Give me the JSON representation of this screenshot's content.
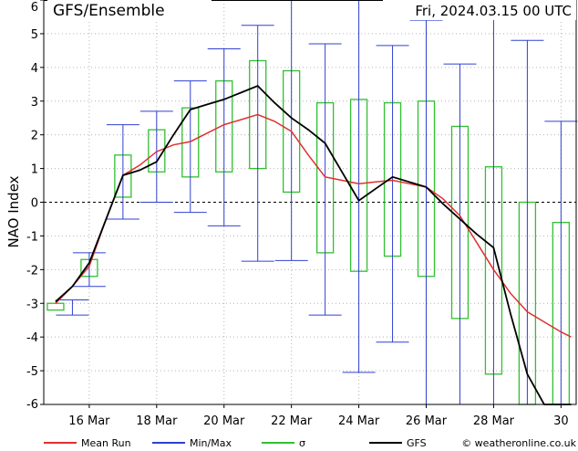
{
  "chart_data": {
    "type": "line",
    "title": "GFS/Ensemble",
    "subtitle": "Fri, 2024.03.15   00 UTC",
    "xlabel": "",
    "ylabel": "NAO Index",
    "ylim": [
      -6,
      6
    ],
    "yticks": [
      -6,
      -5,
      -4,
      -3,
      -2,
      -1,
      0,
      1,
      2,
      3,
      4,
      5,
      6
    ],
    "xticks": [
      {
        "day": 16,
        "label": "16 Mar"
      },
      {
        "day": 18,
        "label": "18 Mar"
      },
      {
        "day": 20,
        "label": "20 Mar"
      },
      {
        "day": 22,
        "label": "22 Mar"
      },
      {
        "day": 24,
        "label": "24 Mar"
      },
      {
        "day": 26,
        "label": "26 Mar"
      },
      {
        "day": 28,
        "label": "28 Mar"
      },
      {
        "day": 30,
        "label": "30"
      }
    ],
    "x_days": [
      15,
      15.5,
      16,
      16.5,
      17,
      17.5,
      18,
      18.5,
      19,
      19.5,
      20,
      20.5,
      21,
      21.5,
      22,
      22.5,
      23,
      23.5,
      24,
      24.5,
      25,
      25.5,
      26,
      26.5,
      27,
      27.5,
      28,
      28.5,
      29,
      29.5,
      30,
      30.3
    ],
    "grid": true,
    "zero_line": true,
    "legend_position": "bottom",
    "colors": {
      "mean": "#e03030",
      "minmax": "#3040d0",
      "sigma": "#30c030",
      "gfs": "#000000",
      "grid": "#b4b4b4"
    },
    "series": [
      {
        "name": "Mean Run",
        "color": "#e03030",
        "values": [
          -3.0,
          -2.5,
          -1.9,
          -0.5,
          0.8,
          1.1,
          1.5,
          1.7,
          1.8,
          2.05,
          2.3,
          2.45,
          2.6,
          2.4,
          2.1,
          1.4,
          0.75,
          0.65,
          0.55,
          0.6,
          0.65,
          0.55,
          0.45,
          0.1,
          -0.4,
          -1.2,
          -2.0,
          -2.7,
          -3.25,
          -3.55,
          -3.85,
          -4.0
        ]
      },
      {
        "name": "GFS",
        "color": "#000000",
        "values": [
          -2.95,
          -2.5,
          -1.8,
          -0.5,
          0.8,
          0.95,
          1.2,
          2.0,
          2.75,
          2.9,
          3.05,
          3.25,
          3.45,
          2.95,
          2.5,
          2.15,
          1.75,
          0.9,
          0.05,
          0.4,
          0.75,
          0.6,
          0.45,
          -0.05,
          -0.5,
          -0.95,
          -1.35,
          -3.3,
          -5.1,
          -6.0,
          -6.0,
          -6.0
        ]
      }
    ],
    "minmax": {
      "name": "Min/Max",
      "bars": [
        {
          "x": 15.5,
          "min": -3.35,
          "max": -2.9
        },
        {
          "x": 16,
          "min": -2.5,
          "max": -1.5
        },
        {
          "x": 17,
          "min": -0.5,
          "max": 2.3
        },
        {
          "x": 18,
          "min": 0.0,
          "max": 2.7
        },
        {
          "x": 19,
          "min": -0.3,
          "max": 3.6
        },
        {
          "x": 20,
          "min": -0.7,
          "max": 4.55
        },
        {
          "x": 21,
          "min": -1.75,
          "max": 5.25
        },
        {
          "x": 22,
          "min": -1.73,
          "max": 6.0
        },
        {
          "x": 23,
          "min": -3.35,
          "max": 4.7
        },
        {
          "x": 24,
          "min": -5.05,
          "max": 6.0
        },
        {
          "x": 25,
          "min": -4.15,
          "max": 4.65
        },
        {
          "x": 26,
          "min": -6.0,
          "max": 5.4
        },
        {
          "x": 27,
          "min": -6.0,
          "max": 4.1
        },
        {
          "x": 28,
          "min": -6.0,
          "max": 5.9
        },
        {
          "x": 29,
          "min": -6.0,
          "max": 4.8
        },
        {
          "x": 30,
          "min": -6.0,
          "max": 2.4
        }
      ]
    },
    "sigma": {
      "name": "σ",
      "boxes": [
        {
          "x": 15,
          "low": -3.2,
          "high": -3.0
        },
        {
          "x": 16,
          "low": -2.2,
          "high": -1.7
        },
        {
          "x": 17,
          "low": 0.15,
          "high": 1.4
        },
        {
          "x": 18,
          "low": 0.9,
          "high": 2.15
        },
        {
          "x": 19,
          "low": 0.75,
          "high": 2.8
        },
        {
          "x": 20,
          "low": 0.9,
          "high": 3.6
        },
        {
          "x": 21,
          "low": 1.0,
          "high": 4.2
        },
        {
          "x": 22,
          "low": 0.3,
          "high": 3.9
        },
        {
          "x": 23,
          "low": -1.5,
          "high": 2.95
        },
        {
          "x": 24,
          "low": -2.05,
          "high": 3.05
        },
        {
          "x": 25,
          "low": -1.6,
          "high": 2.95
        },
        {
          "x": 26,
          "low": -2.2,
          "high": 3.0
        },
        {
          "x": 27,
          "low": -3.45,
          "high": 2.25
        },
        {
          "x": 28,
          "low": -5.1,
          "high": 1.05
        },
        {
          "x": 29,
          "low": -6.0,
          "high": 0.0
        },
        {
          "x": 30,
          "low": -6.0,
          "high": -0.6
        }
      ]
    }
  },
  "legend": [
    {
      "label": "Mean Run",
      "color": "#e03030"
    },
    {
      "label": "Min/Max",
      "color": "#3040d0"
    },
    {
      "label": "σ",
      "color": "#30c030"
    },
    {
      "label": "GFS",
      "color": "#000000"
    }
  ],
  "credit": "© weatheronline.co.uk"
}
